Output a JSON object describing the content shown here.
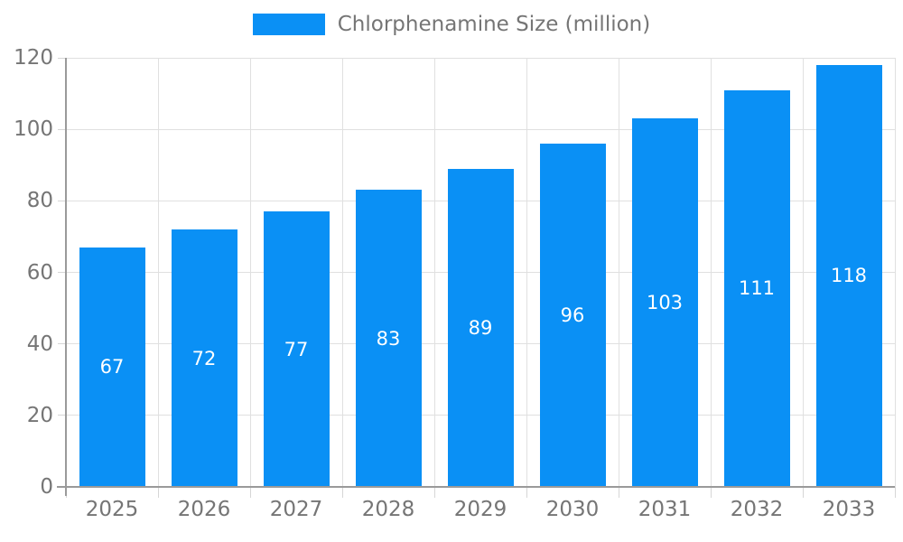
{
  "chart_data": {
    "type": "bar",
    "title": "Chlorphenamine Size (million)",
    "categories": [
      "2025",
      "2026",
      "2027",
      "2028",
      "2029",
      "2030",
      "2031",
      "2032",
      "2033"
    ],
    "values": [
      67,
      72,
      77,
      83,
      89,
      96,
      103,
      111,
      118
    ],
    "xlabel": "",
    "ylabel": "",
    "ylim": [
      0,
      120
    ],
    "yticks": [
      0,
      20,
      40,
      60,
      80,
      100,
      120
    ],
    "grid": true,
    "legend_position": "top",
    "value_labels": "inside-center-white"
  },
  "legend": {
    "label": "Chlorphenamine Size (million)"
  },
  "colors": {
    "bar": "#0a90f5",
    "grid": "#e0e0e0",
    "axis": "#9a9a9a",
    "tick": "#d6d6d6",
    "tick_text": "#757575",
    "value_text": "#ffffff",
    "background": "#ffffff"
  }
}
